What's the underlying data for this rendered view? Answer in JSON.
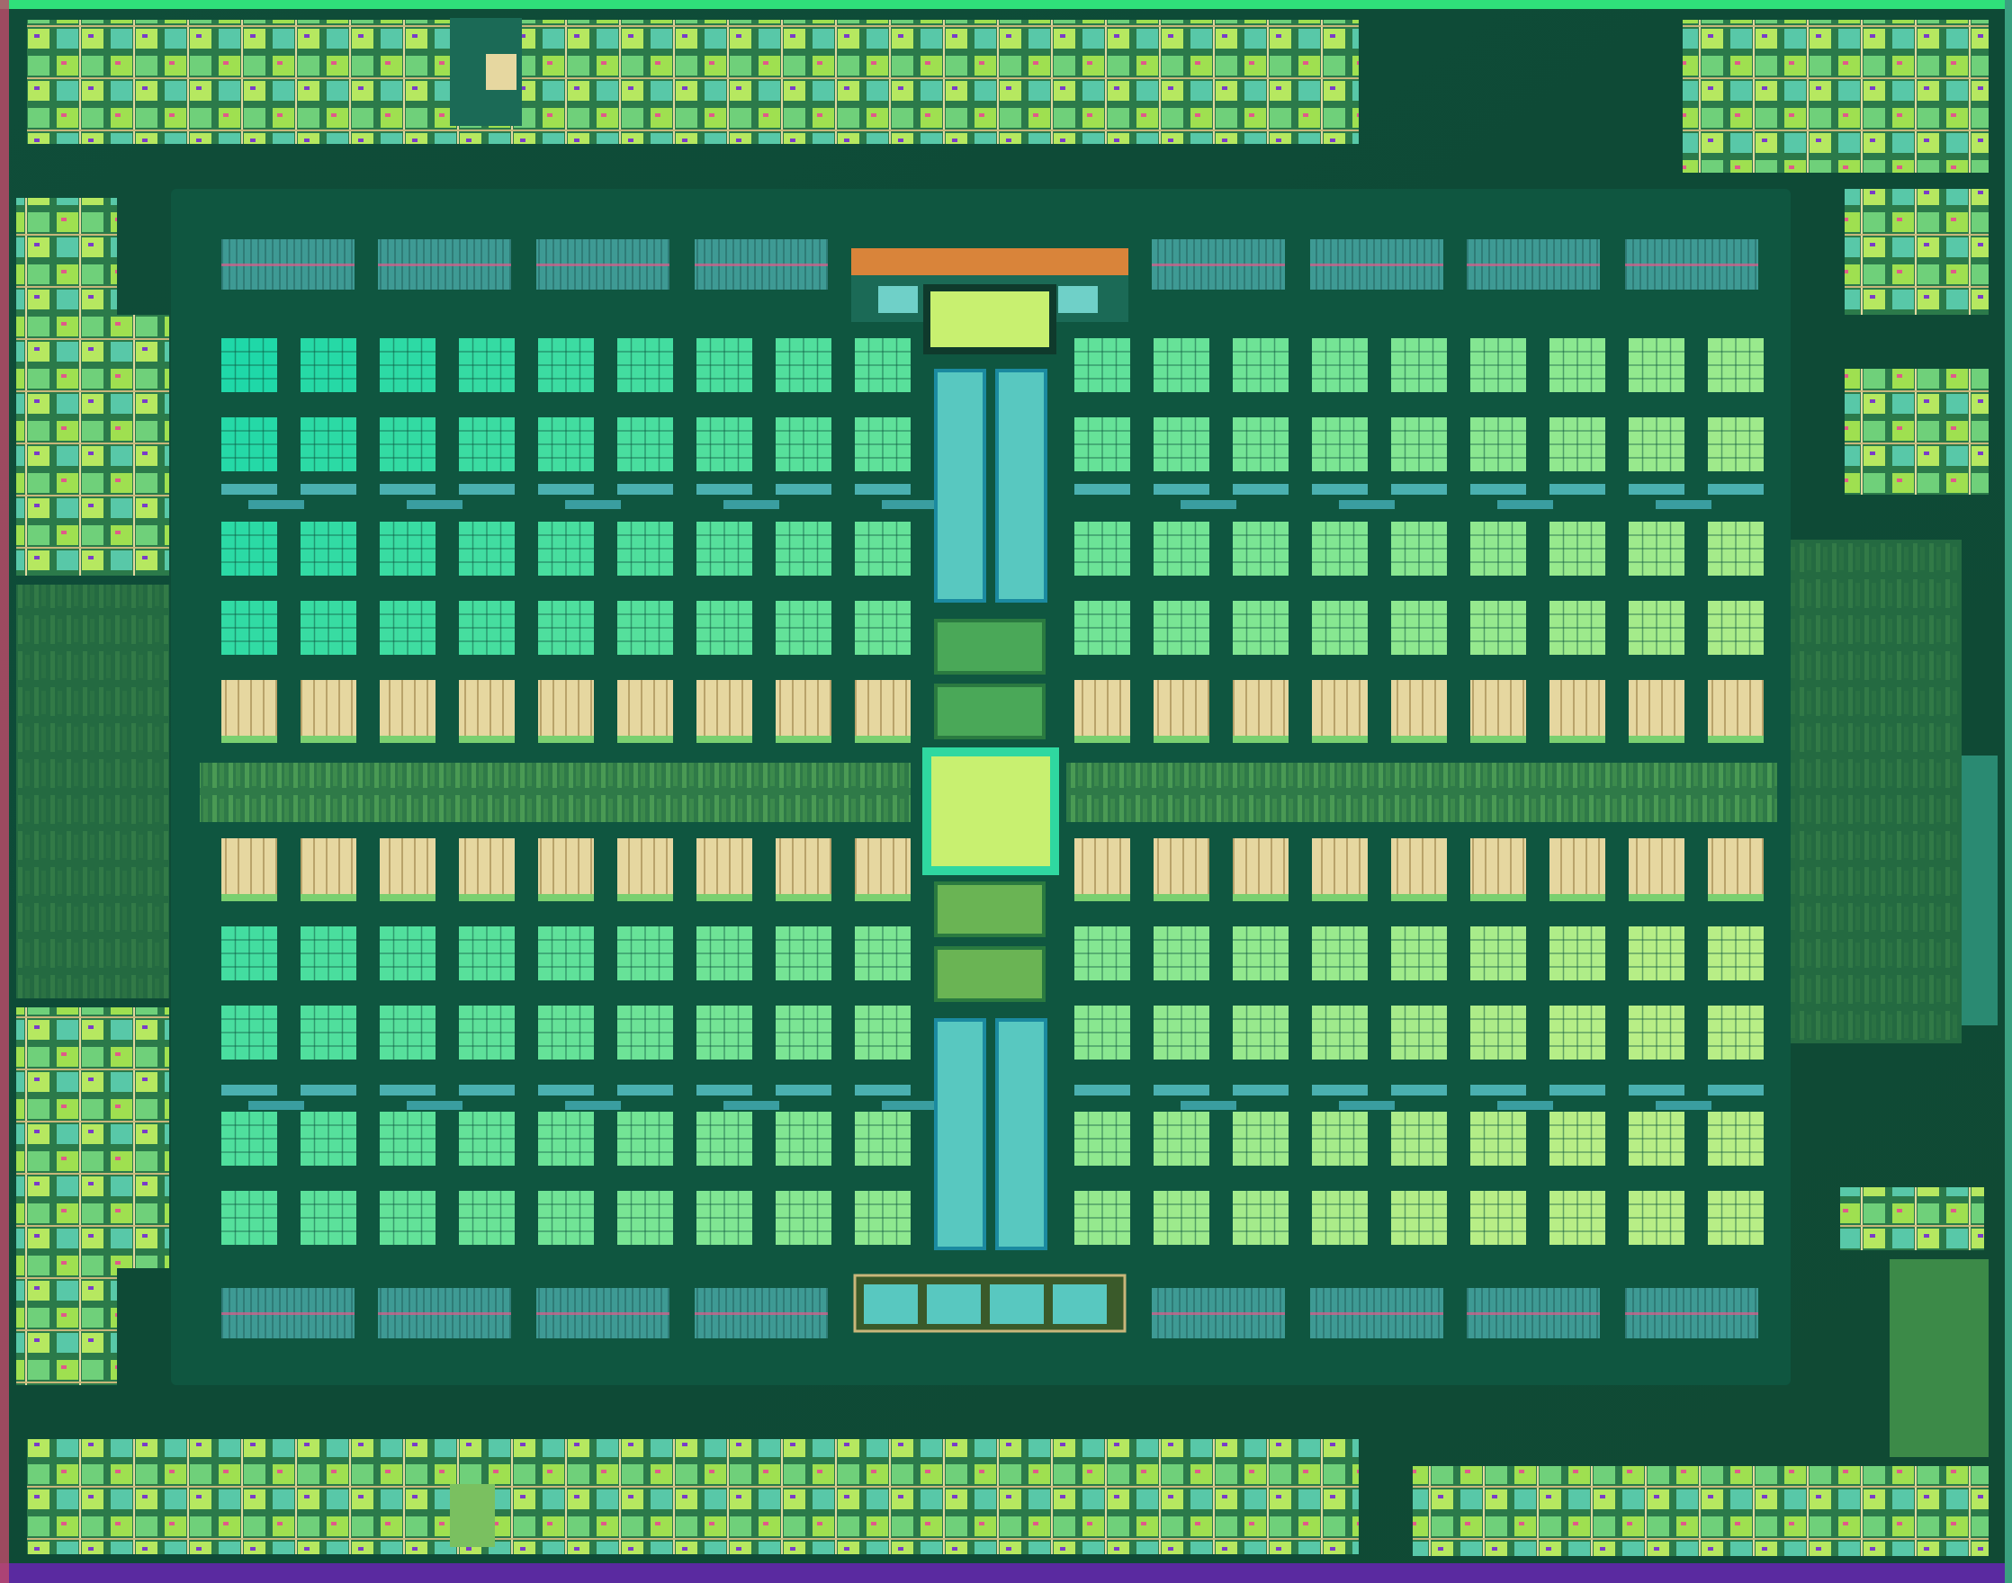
{
  "image": {
    "kind": "chip die shot (false-colour floorplan)",
    "palette": {
      "background": "#0e4a36",
      "panel": "#0f5640",
      "tile_left": "#1fd8a8",
      "tile_right": "#a6ee86",
      "tile_bottom": "#38e07a",
      "cache": "#e6d7a0",
      "cache_stripe": "#c9b67a",
      "memory_bank": "#3e9a94",
      "center_block": "#c8f070",
      "accent_pink": "#e05a8a",
      "accent_purple": "#7a3cc8",
      "accent_orange": "#d9843a",
      "interface_lime": "#9fe050"
    }
  }
}
